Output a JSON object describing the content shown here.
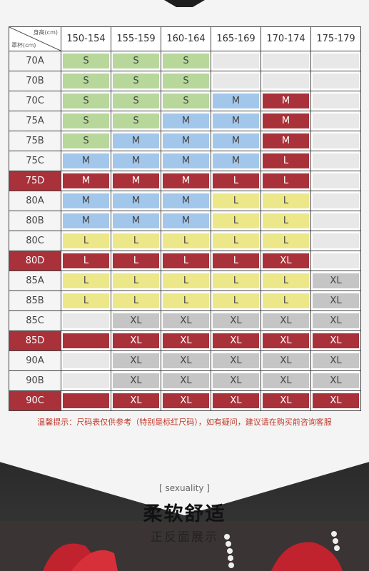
{
  "corner": {
    "height_label": "身高(cm)",
    "cup_label": "罩杯(cm)"
  },
  "columns": [
    "150-154",
    "155-159",
    "160-164",
    "165-169",
    "170-174",
    "175-179"
  ],
  "rows": [
    {
      "label": "70A",
      "highlight": false,
      "cells": [
        "S",
        "S",
        "S",
        "",
        "",
        ""
      ]
    },
    {
      "label": "70B",
      "highlight": false,
      "cells": [
        "S",
        "S",
        "S",
        "",
        "",
        ""
      ]
    },
    {
      "label": "70C",
      "highlight": false,
      "cells": [
        "S",
        "S",
        "S",
        "M",
        "M",
        ""
      ]
    },
    {
      "label": "75A",
      "highlight": false,
      "cells": [
        "S",
        "S",
        "M",
        "M",
        "M",
        ""
      ]
    },
    {
      "label": "75B",
      "highlight": false,
      "cells": [
        "S",
        "M",
        "M",
        "M",
        "M",
        ""
      ]
    },
    {
      "label": "75C",
      "highlight": false,
      "cells": [
        "M",
        "M",
        "M",
        "M",
        "L",
        ""
      ]
    },
    {
      "label": "75D",
      "highlight": true,
      "cells": [
        "M",
        "M",
        "M",
        "L",
        "L",
        ""
      ]
    },
    {
      "label": "80A",
      "highlight": false,
      "cells": [
        "M",
        "M",
        "M",
        "L",
        "L",
        ""
      ]
    },
    {
      "label": "80B",
      "highlight": false,
      "cells": [
        "M",
        "M",
        "M",
        "L",
        "L",
        ""
      ]
    },
    {
      "label": "80C",
      "highlight": false,
      "cells": [
        "L",
        "L",
        "L",
        "L",
        "L",
        ""
      ]
    },
    {
      "label": "80D",
      "highlight": true,
      "cells": [
        "L",
        "L",
        "L",
        "L",
        "XL",
        ""
      ]
    },
    {
      "label": "85A",
      "highlight": false,
      "cells": [
        "L",
        "L",
        "L",
        "L",
        "L",
        "XL"
      ]
    },
    {
      "label": "85B",
      "highlight": false,
      "cells": [
        "L",
        "L",
        "L",
        "L",
        "L",
        "XL"
      ]
    },
    {
      "label": "85C",
      "highlight": false,
      "cells": [
        "",
        "XL",
        "XL",
        "XL",
        "XL",
        "XL"
      ]
    },
    {
      "label": "85D",
      "highlight": true,
      "cells": [
        "",
        "XL",
        "XL",
        "XL",
        "XL",
        "XL"
      ]
    },
    {
      "label": "90A",
      "highlight": false,
      "cells": [
        "",
        "XL",
        "XL",
        "XL",
        "XL",
        "XL"
      ]
    },
    {
      "label": "90B",
      "highlight": false,
      "cells": [
        "",
        "XL",
        "XL",
        "XL",
        "XL",
        "XL"
      ]
    },
    {
      "label": "90C",
      "highlight": true,
      "cells": [
        "",
        "XL",
        "XL",
        "XL",
        "XL",
        "XL"
      ]
    }
  ],
  "cell_colors": {
    "70A": [
      "s",
      "s",
      "s",
      "empty",
      "empty",
      "empty"
    ],
    "70B": [
      "s",
      "s",
      "s",
      "empty",
      "empty",
      "empty"
    ],
    "70C": [
      "s",
      "s",
      "s",
      "m",
      "red",
      "empty"
    ],
    "75A": [
      "s",
      "s",
      "m",
      "m",
      "red",
      "empty"
    ],
    "75B": [
      "s",
      "m",
      "m",
      "m",
      "red",
      "empty"
    ],
    "75C": [
      "m",
      "m",
      "m",
      "m",
      "red",
      "empty"
    ],
    "75D": [
      "red",
      "red",
      "red",
      "red",
      "red",
      "empty"
    ],
    "80A": [
      "m",
      "m",
      "m",
      "l",
      "l",
      "empty"
    ],
    "80B": [
      "m",
      "m",
      "m",
      "l",
      "l",
      "empty"
    ],
    "80C": [
      "l",
      "l",
      "l",
      "l",
      "l",
      "empty"
    ],
    "80D": [
      "red",
      "red",
      "red",
      "red",
      "red",
      "empty"
    ],
    "85A": [
      "l",
      "l",
      "l",
      "l",
      "l",
      "xl"
    ],
    "85B": [
      "l",
      "l",
      "l",
      "l",
      "l",
      "xl"
    ],
    "85C": [
      "empty",
      "xl",
      "xl",
      "xl",
      "xl",
      "xl"
    ],
    "85D": [
      "red",
      "red",
      "red",
      "red",
      "red",
      "red"
    ],
    "90A": [
      "empty",
      "xl",
      "xl",
      "xl",
      "xl",
      "xl"
    ],
    "90B": [
      "empty",
      "xl",
      "xl",
      "xl",
      "xl",
      "xl"
    ],
    "90C": [
      "red",
      "red",
      "red",
      "red",
      "red",
      "red"
    ]
  },
  "tip": "温馨提示：尺码表仅供参考（特别是标红尺码），如有疑问，建议请在购买前咨询客服",
  "section": {
    "tag": "[ sexuality ]",
    "title": "柔软舒适",
    "subtitle": "正反面展示"
  },
  "colors": {
    "S": "#b7d79b",
    "M": "#a3c7ea",
    "L": "#ece88a",
    "XL": "#c5c5c5",
    "highlight": "#a9313a"
  }
}
